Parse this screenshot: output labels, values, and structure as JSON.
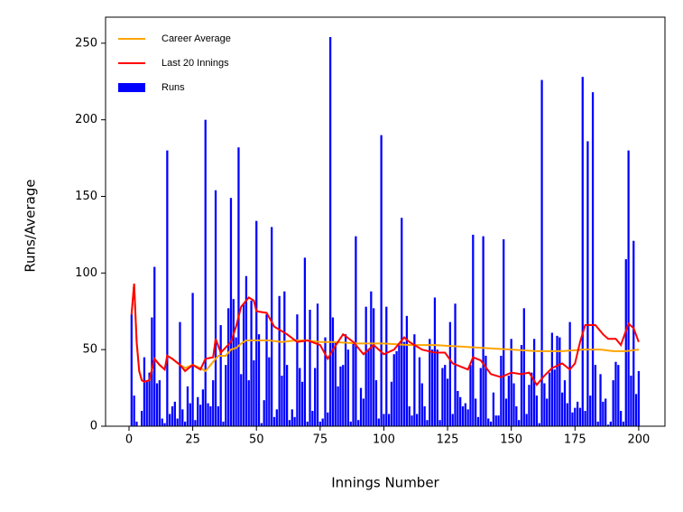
{
  "chart_data": {
    "type": "bar",
    "x_label": "Innings Number",
    "y_label": "Runs/Average",
    "xlim": [
      -9.2,
      210.3
    ],
    "ylim": [
      0,
      267
    ],
    "xticks": [
      0,
      25,
      50,
      75,
      100,
      125,
      150,
      175,
      200
    ],
    "yticks": [
      0,
      50,
      100,
      150,
      200,
      250
    ],
    "legend": "upper left",
    "series": [
      {
        "name": "Career Average",
        "type": "line",
        "color": "#ffa500",
        "x": [
          1,
          2,
          3,
          4,
          5,
          6,
          8,
          10,
          12,
          14,
          15,
          17,
          20,
          22,
          25,
          28,
          30,
          33,
          35,
          38,
          40,
          42,
          44,
          46,
          50,
          55,
          60,
          65,
          70,
          75,
          80,
          90,
          100,
          110,
          120,
          130,
          140,
          150,
          160,
          170,
          178,
          180,
          185,
          190,
          195,
          200
        ],
        "values": [
          73,
          93,
          55,
          36,
          30,
          29,
          30,
          44,
          40,
          37,
          46,
          44,
          40,
          38,
          40,
          38,
          36,
          42,
          46,
          46,
          50,
          51,
          54,
          56,
          56,
          56,
          55,
          56,
          56,
          55,
          55,
          54,
          54,
          53,
          53,
          52,
          51,
          50,
          49,
          49,
          50,
          50,
          50,
          49,
          49,
          50
        ]
      },
      {
        "name": "Last 20 Innings",
        "type": "line",
        "color": "#ff0000",
        "x": [
          1,
          2,
          3,
          4,
          5,
          6,
          8,
          10,
          12,
          14,
          15,
          17,
          20,
          22,
          25,
          28,
          30,
          33,
          34,
          36,
          40,
          42,
          44,
          47,
          49,
          50,
          54,
          57,
          62,
          66,
          70,
          75,
          78,
          80,
          84,
          88,
          92,
          96,
          100,
          104,
          108,
          110,
          115,
          120,
          124,
          127,
          130,
          133,
          135,
          138,
          142,
          146,
          150,
          154,
          157,
          160,
          163,
          166,
          170,
          173,
          175,
          177,
          179,
          183,
          186,
          188,
          191,
          193,
          196,
          198,
          200
        ],
        "values": [
          73,
          93,
          55,
          36,
          30,
          29,
          30,
          44,
          40,
          37,
          46,
          44,
          40,
          36,
          40,
          37,
          44,
          45,
          57,
          48,
          55,
          65,
          78,
          84,
          82,
          75,
          74,
          65,
          60,
          55,
          56,
          53,
          44,
          50,
          60,
          55,
          47,
          53,
          47,
          50,
          58,
          55,
          50,
          48,
          48,
          41,
          39,
          37,
          45,
          43,
          34,
          32,
          35,
          34,
          35,
          27,
          33,
          38,
          41,
          37,
          41,
          55,
          66,
          66,
          60,
          57,
          57,
          53,
          67,
          64,
          55
        ]
      },
      {
        "name": "Runs",
        "type": "bar",
        "color": "#0000ff",
        "x": [
          1,
          2,
          3,
          4,
          5,
          6,
          7,
          8,
          9,
          10,
          11,
          12,
          13,
          14,
          15,
          16,
          17,
          18,
          19,
          20,
          21,
          22,
          23,
          24,
          25,
          26,
          27,
          28,
          29,
          30,
          31,
          32,
          33,
          34,
          35,
          36,
          37,
          38,
          39,
          40,
          41,
          42,
          43,
          44,
          45,
          46,
          47,
          48,
          49,
          50,
          51,
          52,
          53,
          54,
          55,
          56,
          57,
          58,
          59,
          60,
          61,
          62,
          63,
          64,
          65,
          66,
          67,
          68,
          69,
          70,
          71,
          72,
          73,
          74,
          75,
          76,
          77,
          78,
          79,
          80,
          81,
          82,
          83,
          84,
          85,
          86,
          87,
          88,
          89,
          90,
          91,
          92,
          93,
          94,
          95,
          96,
          97,
          98,
          99,
          100,
          101,
          102,
          103,
          104,
          105,
          106,
          107,
          108,
          109,
          110,
          111,
          112,
          113,
          114,
          115,
          116,
          117,
          118,
          119,
          120,
          121,
          122,
          123,
          124,
          125,
          126,
          127,
          128,
          129,
          130,
          131,
          132,
          133,
          134,
          135,
          136,
          137,
          138,
          139,
          140,
          141,
          142,
          143,
          144,
          145,
          146,
          147,
          148,
          149,
          150,
          151,
          152,
          153,
          154,
          155,
          156,
          157,
          158,
          159,
          160,
          161,
          162,
          163,
          164,
          165,
          166,
          167,
          168,
          169,
          170,
          171,
          172,
          173,
          174,
          175,
          176,
          177,
          178,
          179,
          180,
          181,
          182,
          183,
          184,
          185,
          186,
          187,
          188,
          189,
          190,
          191,
          192,
          193,
          194,
          195,
          196,
          197,
          198,
          199,
          200
        ],
        "values": [
          73,
          20,
          3,
          0,
          10,
          45,
          30,
          35,
          71,
          104,
          28,
          30,
          5,
          2,
          180,
          8,
          13,
          16,
          5,
          68,
          11,
          3,
          26,
          15,
          87,
          4,
          19,
          14,
          24,
          200,
          15,
          13,
          30,
          154,
          13,
          66,
          3,
          40,
          77,
          149,
          83,
          58,
          182,
          34,
          80,
          98,
          30,
          82,
          43,
          134,
          60,
          2,
          17,
          73,
          45,
          130,
          6,
          11,
          85,
          33,
          88,
          40,
          4,
          11,
          6,
          73,
          38,
          29,
          110,
          3,
          76,
          10,
          38,
          80,
          3,
          5,
          58,
          9,
          254,
          71,
          55,
          26,
          39,
          40,
          60,
          50,
          3,
          54,
          124,
          4,
          25,
          18,
          78,
          50,
          88,
          77,
          30,
          5,
          190,
          8,
          78,
          8,
          29,
          47,
          49,
          53,
          136,
          55,
          72,
          13,
          7,
          60,
          8,
          45,
          28,
          13,
          4,
          57,
          50,
          84,
          50,
          4,
          38,
          40,
          31,
          68,
          8,
          80,
          23,
          19,
          13,
          15,
          11,
          40,
          125,
          18,
          6,
          38,
          124,
          46,
          5,
          3,
          22,
          7,
          7,
          46,
          122,
          18,
          33,
          57,
          28,
          13,
          4,
          53,
          77,
          8,
          27,
          35,
          57,
          20,
          2,
          226,
          28,
          18,
          35,
          61,
          37,
          59,
          58,
          22,
          30,
          15,
          68,
          9,
          12,
          16,
          12,
          228,
          10,
          186,
          20,
          218,
          40,
          3,
          34,
          16,
          18,
          1,
          3,
          30,
          42,
          40,
          10,
          3,
          109,
          180,
          33,
          121,
          21,
          36
        ]
      }
    ]
  }
}
